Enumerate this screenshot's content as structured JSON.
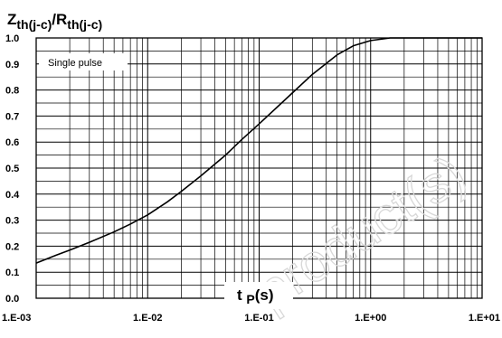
{
  "chart_data": {
    "type": "line",
    "title": "",
    "ylabel": {
      "main": "Z",
      "sub": "th(j-c)",
      "sep": "/",
      "main2": "R",
      "sub2": "th(j-c)"
    },
    "xlabel": {
      "main": "t",
      "sub": "p",
      "unit": "(s)"
    },
    "annotation": "Single pulse",
    "watermark": "product(s)",
    "x_scale": "log",
    "xlim": [
      0.001,
      10
    ],
    "ylim": [
      0,
      1.0
    ],
    "grid": true,
    "x_tick_labels": [
      "1.E-03",
      "1.E-02",
      "1.E-01",
      "1.E+00",
      "1.E+01"
    ],
    "y_tick_labels": [
      "0.0",
      "0.1",
      "0.2",
      "0.3",
      "0.4",
      "0.5",
      "0.6",
      "0.7",
      "0.8",
      "0.9",
      "1.0"
    ],
    "series": [
      {
        "color": "#000000",
        "x": [
          0.001,
          0.0015,
          0.002,
          0.003,
          0.005,
          0.007,
          0.01,
          0.015,
          0.02,
          0.03,
          0.05,
          0.07,
          0.1,
          0.15,
          0.2,
          0.3,
          0.5,
          0.7,
          1.0,
          1.5,
          2.0,
          3.0,
          5.0,
          10.0
        ],
        "y": [
          0.135,
          0.165,
          0.185,
          0.215,
          0.255,
          0.285,
          0.32,
          0.37,
          0.41,
          0.47,
          0.55,
          0.61,
          0.67,
          0.74,
          0.79,
          0.86,
          0.935,
          0.97,
          0.99,
          1.0,
          1.0,
          1.0,
          1.0,
          1.0
        ]
      }
    ]
  }
}
